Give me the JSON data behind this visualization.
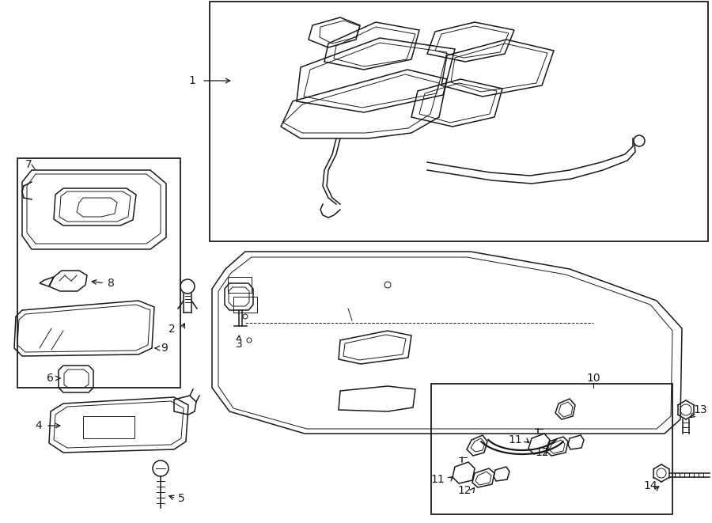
{
  "bg_color": "#ffffff",
  "line_color": "#1a1a1a",
  "fig_width": 9.0,
  "fig_height": 6.61,
  "dpi": 100,
  "lw": 1.1,
  "lwd": 0.7,
  "fs": 10
}
